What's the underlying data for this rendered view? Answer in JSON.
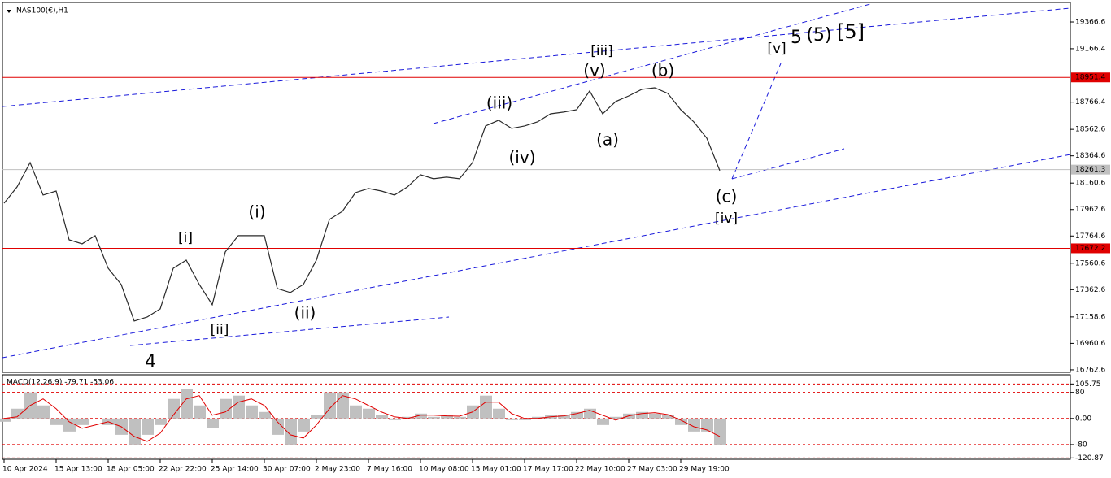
{
  "chart_data": [
    {
      "type": "line",
      "title": "NAS100(€),H1",
      "categories": [
        "10 Apr 2024",
        null,
        null,
        null,
        "15 Apr 13:00",
        null,
        null,
        null,
        "18 Apr 05:00",
        null,
        null,
        null,
        "22 Apr 22:00",
        null,
        null,
        null,
        "25 Apr 14:00",
        null,
        null,
        null,
        "30 Apr 07:00",
        null,
        null,
        null,
        "2 May 23:00",
        null,
        null,
        null,
        "7 May 16:00",
        null,
        null,
        null,
        "10 May 08:00",
        null,
        null,
        null,
        "15 May 01:00",
        null,
        null,
        null,
        "17 May 17:00",
        null,
        null,
        null,
        "22 May 10:00",
        null,
        null,
        null,
        "27 May 03:00",
        null,
        null,
        null,
        "29 May 19:00",
        null,
        null,
        null
      ],
      "series": [
        {
          "color": "#2a2a2a",
          "values": [
            18010,
            18132,
            18314,
            18071,
            18101,
            17736,
            17706,
            17767,
            17523,
            17402,
            17128,
            17158,
            17219,
            17523,
            17584,
            17402,
            17250,
            17645,
            17767,
            17767,
            17767,
            17371,
            17341,
            17402,
            17584,
            17888,
            17949,
            18089,
            18120,
            18101,
            18071,
            18132,
            18223,
            18193,
            18205,
            18193,
            18314,
            18588,
            18631,
            18570,
            18588,
            18619,
            18679,
            18692,
            18710,
            18850,
            18679,
            18771,
            18813,
            18862,
            18874,
            18832,
            18710,
            18619,
            18497,
            18254
          ]
        }
      ],
      "ylim": [
        16744,
        19531
      ],
      "yticks": [
        19366.6,
        19166.4,
        18766.4,
        18562.6,
        18364.6,
        18160.6,
        17962.6,
        17764.6,
        17560.6,
        17362.6,
        17158.6,
        16960.6,
        16762.6
      ],
      "hlines": [
        {
          "value": 18951.4,
          "color": "#e00000"
        },
        {
          "value": 18261.3,
          "color": "#c0c0c0"
        },
        {
          "value": 17672.2,
          "color": "#e00000"
        }
      ],
      "annotations": [
        {
          "text": "4",
          "color": "#1a1adb"
        },
        {
          "text": "[i]",
          "color": "#2e8b22"
        },
        {
          "text": "[ii]",
          "color": "#2e8b22"
        },
        {
          "text": "(i)",
          "color": "#1a1adb"
        },
        {
          "text": "(ii)",
          "color": "#1a1adb"
        },
        {
          "text": "(iii)",
          "color": "#1a1adb"
        },
        {
          "text": "(iv)",
          "color": "#1a1adb"
        },
        {
          "text": "[iii]",
          "color": "#2e8b22"
        },
        {
          "text": "(v)",
          "color": "#1a1adb"
        },
        {
          "text": "(a)",
          "color": "#1a1adb"
        },
        {
          "text": "(b)",
          "color": "#1a1adb"
        },
        {
          "text": "(c)",
          "color": "#1a1adb"
        },
        {
          "text": "[iv]",
          "color": "#2e8b22"
        },
        {
          "text": "[v]",
          "color": "#2e8b22"
        },
        {
          "text": "5",
          "color": "#1a1adb"
        },
        {
          "text": "(5)",
          "color": "#e00000"
        },
        {
          "text": "[5]",
          "color": "#000000"
        }
      ]
    },
    {
      "type": "macd",
      "title": "MACD(12,26,9) -79.71 -53.06",
      "ylim": [
        -125,
        134
      ],
      "yticks": [
        105.75,
        80,
        {
          "value": 0,
          "label": "0.00"
        },
        -80,
        -120.87
      ],
      "series": [
        {
          "color": "#c0c0c0",
          "values": [
            -10,
            30,
            80,
            40,
            -20,
            -40,
            -20,
            0,
            -20,
            -50,
            -80,
            -50,
            -20,
            60,
            90,
            40,
            -30,
            60,
            70,
            40,
            20,
            -50,
            -80,
            -40,
            10,
            80,
            80,
            40,
            30,
            10,
            -5,
            5,
            15,
            5,
            10,
            5,
            40,
            70,
            30,
            -5,
            -5,
            5,
            10,
            10,
            20,
            30,
            -20,
            5,
            15,
            20,
            15,
            10,
            -20,
            -40,
            -40,
            -80
          ]
        },
        {
          "color": "#e00000",
          "values": [
            0,
            5,
            40,
            60,
            30,
            -10,
            -30,
            -20,
            -10,
            -25,
            -55,
            -70,
            -45,
            10,
            60,
            70,
            10,
            20,
            50,
            60,
            40,
            -10,
            -50,
            -60,
            -20,
            30,
            70,
            60,
            40,
            20,
            5,
            0,
            10,
            10,
            8,
            7,
            20,
            50,
            50,
            15,
            0,
            0,
            5,
            8,
            15,
            25,
            10,
            -5,
            8,
            15,
            18,
            12,
            -5,
            -25,
            -35,
            -55
          ]
        }
      ]
    }
  ]
}
